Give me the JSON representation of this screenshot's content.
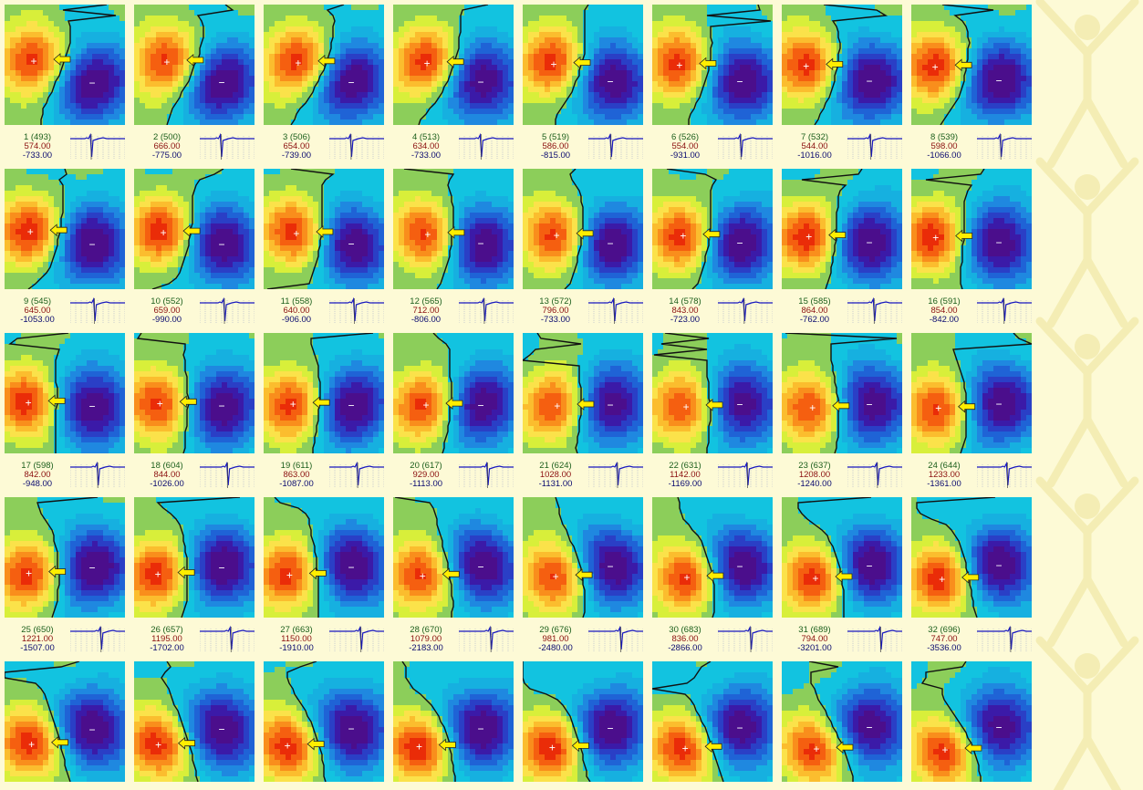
{
  "colors": {
    "background": "#fdfad6",
    "label": "#1b5e1b",
    "max_value": "#8b1010",
    "min_value": "#0b0b70",
    "arrow": "#ffee00",
    "ecg_trace": "#1818c0",
    "ecg_grid": "#9aa0c8"
  },
  "icons": {
    "positive_marker": "plus",
    "negative_marker": "minus",
    "direction_marker": "yellow-arrow",
    "background_figure": "human-figure"
  },
  "marker_symbols": {
    "positive": "+",
    "negative": "−"
  },
  "frames": [
    {
      "label": "1 (493)",
      "max": "574.00",
      "min": "-733.00"
    },
    {
      "label": "2 (500)",
      "max": "666.00",
      "min": "-775.00"
    },
    {
      "label": "3 (506)",
      "max": "654.00",
      "min": "-739.00"
    },
    {
      "label": "4 (513)",
      "max": "634.00",
      "min": "-733.00"
    },
    {
      "label": "5 (519)",
      "max": "586.00",
      "min": "-815.00"
    },
    {
      "label": "6 (526)",
      "max": "554.00",
      "min": "-931.00"
    },
    {
      "label": "7 (532)",
      "max": "544.00",
      "min": "-1016.00"
    },
    {
      "label": "8 (539)",
      "max": "598.00",
      "min": "-1066.00"
    },
    {
      "label": "9 (545)",
      "max": "645.00",
      "min": "-1053.00"
    },
    {
      "label": "10 (552)",
      "max": "659.00",
      "min": "-990.00"
    },
    {
      "label": "11 (558)",
      "max": "640.00",
      "min": "-906.00"
    },
    {
      "label": "12 (565)",
      "max": "712.00",
      "min": "-806.00"
    },
    {
      "label": "13 (572)",
      "max": "796.00",
      "min": "-733.00"
    },
    {
      "label": "14 (578)",
      "max": "843.00",
      "min": "-723.00"
    },
    {
      "label": "15 (585)",
      "max": "864.00",
      "min": "-762.00"
    },
    {
      "label": "16 (591)",
      "max": "854.00",
      "min": "-842.00"
    },
    {
      "label": "17 (598)",
      "max": "842.00",
      "min": "-948.00"
    },
    {
      "label": "18 (604)",
      "max": "844.00",
      "min": "-1026.00"
    },
    {
      "label": "19 (611)",
      "max": "863.00",
      "min": "-1087.00"
    },
    {
      "label": "20 (617)",
      "max": "929.00",
      "min": "-1113.00"
    },
    {
      "label": "21 (624)",
      "max": "1028.00",
      "min": "-1131.00"
    },
    {
      "label": "22 (631)",
      "max": "1142.00",
      "min": "-1169.00"
    },
    {
      "label": "23 (637)",
      "max": "1208.00",
      "min": "-1240.00"
    },
    {
      "label": "24 (644)",
      "max": "1233.00",
      "min": "-1361.00"
    },
    {
      "label": "25 (650)",
      "max": "1221.00",
      "min": "-1507.00"
    },
    {
      "label": "26 (657)",
      "max": "1195.00",
      "min": "-1702.00"
    },
    {
      "label": "27 (663)",
      "max": "1150.00",
      "min": "-1910.00"
    },
    {
      "label": "28 (670)",
      "max": "1079.00",
      "min": "-2183.00"
    },
    {
      "label": "29 (676)",
      "max": "981.00",
      "min": "-2480.00"
    },
    {
      "label": "30 (683)",
      "max": "836.00",
      "min": "-2866.00"
    },
    {
      "label": "31 (689)",
      "max": "794.00",
      "min": "-3201.00"
    },
    {
      "label": "32 (696)",
      "max": "747.00",
      "min": "-3536.00"
    },
    {
      "label": "",
      "max": "",
      "min": ""
    },
    {
      "label": "",
      "max": "",
      "min": ""
    },
    {
      "label": "",
      "max": "",
      "min": ""
    },
    {
      "label": "",
      "max": "",
      "min": ""
    },
    {
      "label": "",
      "max": "",
      "min": ""
    },
    {
      "label": "",
      "max": "",
      "min": ""
    },
    {
      "label": "",
      "max": "",
      "min": ""
    },
    {
      "label": "",
      "max": "",
      "min": ""
    }
  ]
}
